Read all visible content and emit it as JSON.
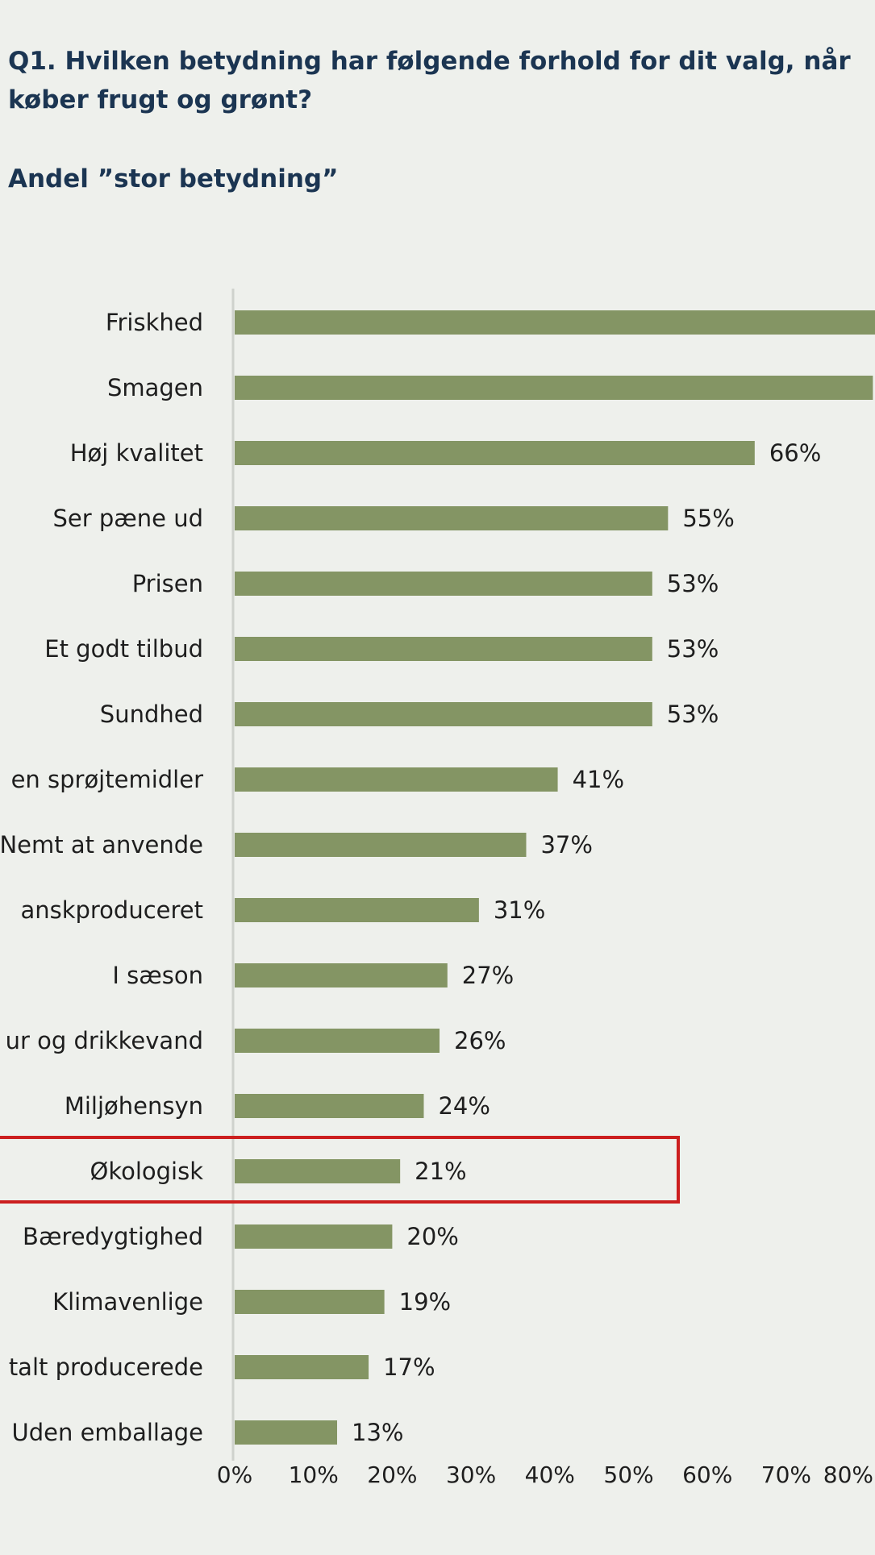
{
  "header": {
    "title": "Q1. Hvilken betydning har følgende forhold for dit valg, når\nkøber frugt og grønt?",
    "subtitle": "Andel ”stor betydning”"
  },
  "chart_data": {
    "type": "bar",
    "orientation": "horizontal",
    "categories": [
      "Friskhed",
      "Smagen",
      "Høj kvalitet",
      "Ser pæne ud",
      "Prisen",
      "Et godt tilbud",
      "Sundhed",
      "en sprøjtemidler",
      "Nemt at anvende",
      "anskproduceret",
      "I sæson",
      "ur og drikkevand",
      "Miljøhensyn",
      "Økologisk",
      "Bæredygtighed",
      "Klimavenlige",
      "talt producerede",
      "Uden emballage"
    ],
    "values": [
      83,
      81,
      66,
      55,
      53,
      53,
      53,
      41,
      37,
      31,
      27,
      26,
      24,
      21,
      20,
      19,
      17,
      13
    ],
    "value_labels": [
      "",
      "",
      "66%",
      "55%",
      "53%",
      "53%",
      "53%",
      "41%",
      "37%",
      "31%",
      "27%",
      "26%",
      "24%",
      "21%",
      "20%",
      "19%",
      "17%",
      "13%"
    ],
    "xlim": [
      0,
      80
    ],
    "x_ticks": [
      0,
      10,
      20,
      30,
      40,
      50,
      60,
      70,
      80
    ],
    "x_tick_labels": [
      "0%",
      "10%",
      "20%",
      "30%",
      "40%",
      "50%",
      "60%",
      "70%",
      "80%"
    ],
    "grid": false,
    "highlighted_category": "Økologisk",
    "colors": {
      "bar": "#849564",
      "axis": "#cfd2cd",
      "highlight": "#cc1f1f",
      "text": "#1e1e1e",
      "title": "#1b3552",
      "background": "#eef0ec"
    }
  }
}
